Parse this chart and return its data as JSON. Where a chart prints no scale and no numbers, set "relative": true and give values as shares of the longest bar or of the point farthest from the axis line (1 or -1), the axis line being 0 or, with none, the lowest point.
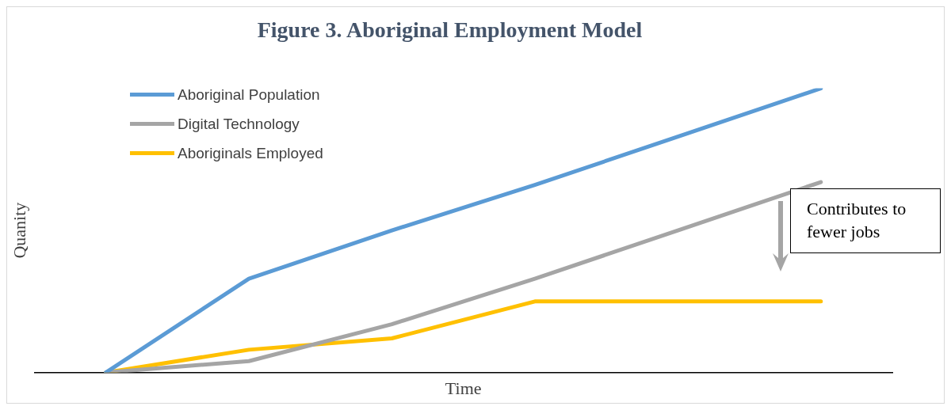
{
  "chart_data": {
    "type": "line",
    "title": "Figure 3. Aboriginal Employment Model",
    "xlabel": "Time",
    "ylabel": "Quanity",
    "relative": true,
    "categories": [
      null,
      null,
      null,
      null,
      null,
      null
    ],
    "legend": "top left",
    "grid": false,
    "marker": "none",
    "line_style": "solid",
    "series": [
      {
        "name": "Aboriginal Population",
        "color": "#5b9bd5",
        "values": [
          0,
          0.33,
          0.5,
          0.66,
          0.83,
          1
        ]
      },
      {
        "name": "Digital Technology",
        "color": "#a5a5a5",
        "values": [
          0,
          0.04,
          0.17,
          0.33,
          0.5,
          0.67
        ]
      },
      {
        "name": "Aboriginals Employed",
        "color": "#ffc000",
        "values": [
          0,
          0.08,
          0.12,
          0.25,
          0.25,
          0.25
        ]
      }
    ],
    "annotations": [
      "Contributes to fewer jobs"
    ]
  }
}
